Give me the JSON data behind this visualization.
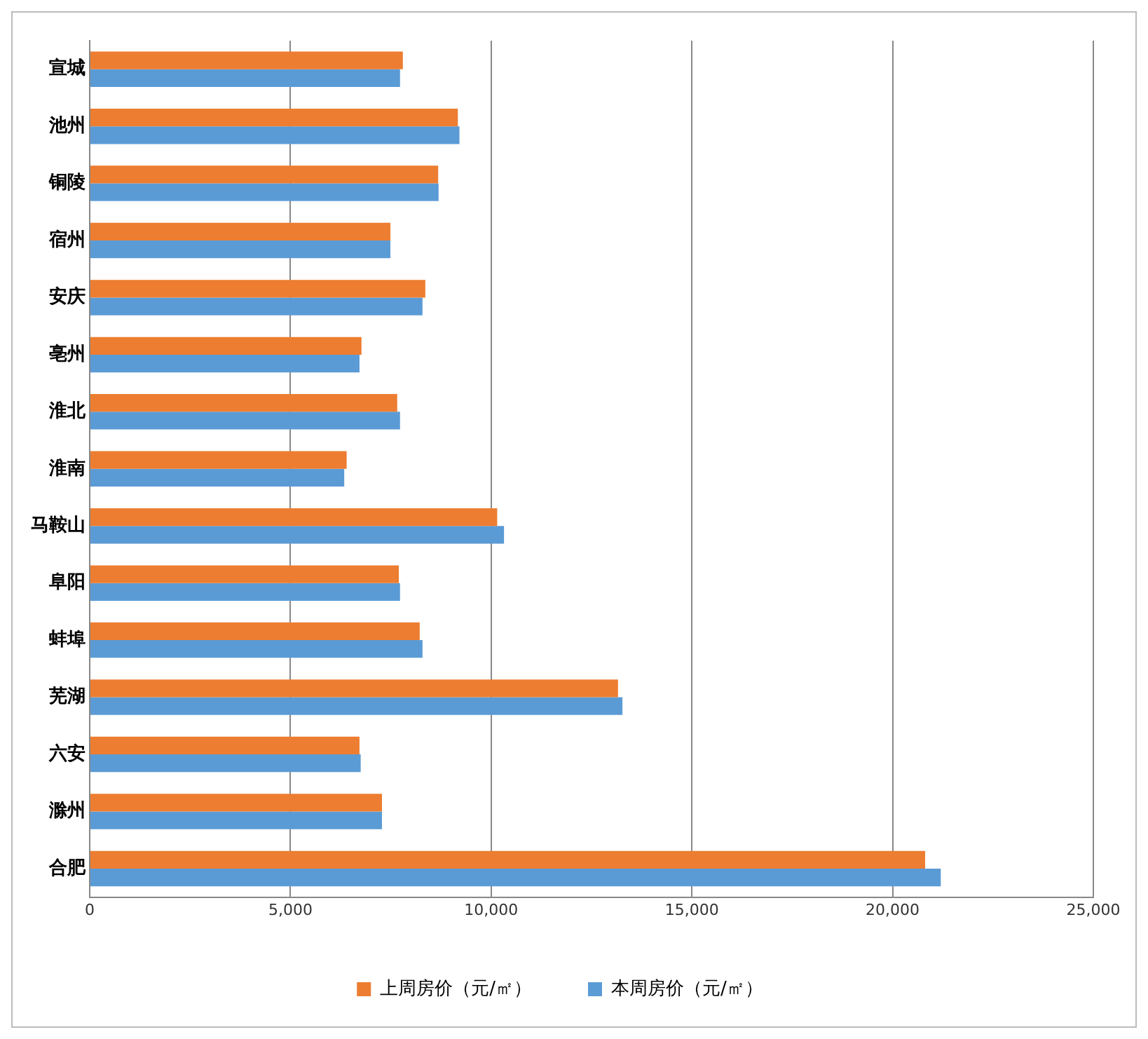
{
  "chart_data": {
    "type": "bar",
    "orientation": "horizontal",
    "categories": [
      "宣城",
      "池州",
      "铜陵",
      "宿州",
      "安庆",
      "亳州",
      "淮北",
      "淮南",
      "马鞍山",
      "阜阳",
      "蚌埠",
      "芜湖",
      "六安",
      "滁州",
      "合肥"
    ],
    "series": [
      {
        "name": "上周房价（元/㎡）",
        "color": "#ed7d31",
        "values": [
          7800,
          9170,
          8680,
          7490,
          8360,
          6770,
          7660,
          6400,
          10150,
          7700,
          8220,
          13160,
          6720,
          7280,
          20810
        ]
      },
      {
        "name": "本周房价（元/㎡）",
        "color": "#5b9bd5",
        "values": [
          7730,
          9210,
          8690,
          7490,
          8290,
          6720,
          7730,
          6340,
          10320,
          7730,
          8290,
          13270,
          6750,
          7280,
          21200
        ]
      }
    ],
    "xlim": [
      0,
      25000
    ],
    "xticks": [
      0,
      {
        "value": 5000,
        "label": "5,000"
      },
      {
        "value": 10000,
        "label": "10,000"
      },
      {
        "value": 15000,
        "label": "15,000"
      },
      {
        "value": 20000,
        "label": "20,000"
      },
      {
        "value": 25000,
        "label": "25,000"
      }
    ],
    "grid": "x",
    "legend": "bottom"
  }
}
